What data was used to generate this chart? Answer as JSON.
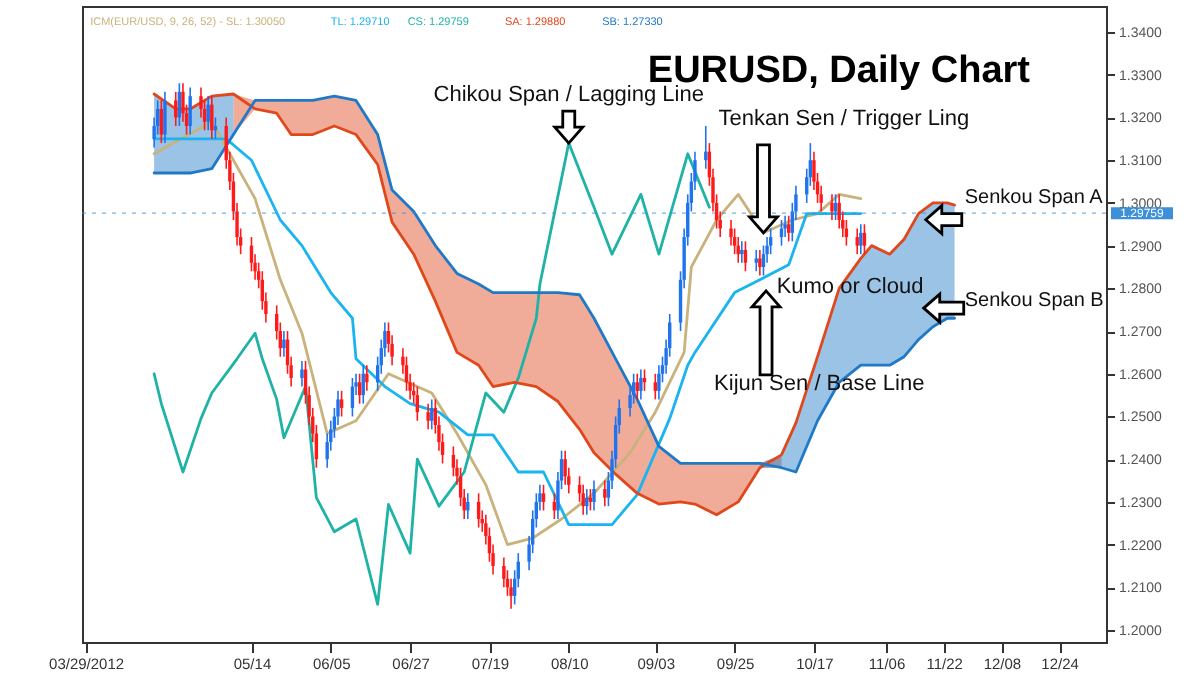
{
  "chart_data": {
    "type": "candlestick",
    "title": "EURUSD, Daily Chart",
    "annotations": [
      "ICM(EUR/USD, 9, 26, 52) - SL: 1.30050",
      "TL: 1.29710",
      "CS: 1.29759",
      "SA: 1.29880",
      "SB: 1.27330",
      {
        "text": "Chikou Span / Lagging Line",
        "x": "2012-08-10",
        "y": 1.314
      },
      "Tenkan Sen / Trigger Ling",
      "Kijun Sen / Base Line",
      "Senkou Span A",
      "Senkou Span B",
      "Kumo or Cloud"
    ],
    "xlim": [
      "2012-03-28",
      "2013-01-06"
    ],
    "xticks": [
      {
        "value": "2012-03-29",
        "label": "03/29/2012"
      },
      {
        "value": "2012-05-14",
        "label": "05/14"
      },
      {
        "value": "2012-06-05",
        "label": "06/05"
      },
      {
        "value": "2012-06-27",
        "label": "06/27"
      },
      {
        "value": "2012-07-19",
        "label": "07/19"
      },
      {
        "value": "2012-08-10",
        "label": "08/10"
      },
      {
        "value": "2012-09-03",
        "label": "09/03"
      },
      {
        "value": "2012-09-25",
        "label": "09/25"
      },
      {
        "value": "2012-10-17",
        "label": "10/17"
      },
      {
        "value": "2012-11-06",
        "label": "11/06"
      },
      {
        "value": "2012-11-22",
        "label": "11/22"
      },
      {
        "value": "2012-12-08",
        "label": "12/08"
      },
      {
        "value": "2012-12-24",
        "label": "12/24"
      }
    ],
    "ylim": [
      1.1972,
      1.3461
    ],
    "yticks": [
      {
        "value": 1.2,
        "label": "1.2000"
      },
      {
        "value": 1.21,
        "label": "1.2100"
      },
      {
        "value": 1.22,
        "label": "1.2200"
      },
      {
        "value": 1.23,
        "label": "1.2300"
      },
      {
        "value": 1.24,
        "label": "1.2400"
      },
      {
        "value": 1.25,
        "label": "1.2500"
      },
      {
        "value": 1.26,
        "label": "1.2600"
      },
      {
        "value": 1.27,
        "label": "1.2700"
      },
      {
        "value": 1.28,
        "label": "1.2800"
      },
      {
        "value": 1.29,
        "label": "1.2900"
      },
      {
        "value": 1.3,
        "label": "1.3000"
      },
      {
        "value": 1.31,
        "label": "1.3100"
      },
      {
        "value": 1.32,
        "label": "1.3200"
      },
      {
        "value": 1.33,
        "label": "1.3300"
      },
      {
        "value": 1.34,
        "label": "1.3400"
      }
    ],
    "ref_lines": [
      {
        "axis": "y",
        "value": 1.29759,
        "label": "1.29759",
        "color": "#3d8fd8"
      }
    ],
    "series": [
      {
        "type": "line",
        "color": "#c9b27c",
        "x": [
          "2012-04-17",
          "2012-05-03",
          "2012-05-15",
          "2012-05-22",
          "2012-05-28",
          "2012-06-04",
          "2012-06-12",
          "2012-06-21",
          "2012-07-03",
          "2012-07-10",
          "2012-07-18",
          "2012-07-24",
          "2012-07-31",
          "2012-08-08",
          "2012-08-17",
          "2012-08-27",
          "2012-09-03",
          "2012-09-11",
          "2012-09-13",
          "2012-09-20",
          "2012-09-26",
          "2012-10-03",
          "2012-10-11",
          "2012-10-18",
          "2012-10-24",
          "2012-10-30"
        ],
        "values": [
          1.3115,
          1.319,
          1.301,
          1.282,
          1.2695,
          1.246,
          1.249,
          1.26,
          1.2555,
          1.246,
          1.234,
          1.22,
          1.2215,
          1.226,
          1.232,
          1.2415,
          1.251,
          1.265,
          1.285,
          1.296,
          1.302,
          1.293,
          1.296,
          1.2975,
          1.302,
          1.301
        ]
      },
      {
        "type": "line",
        "color": "#1ab4f0",
        "x": [
          "2012-04-17",
          "2012-05-07",
          "2012-05-14",
          "2012-05-22",
          "2012-05-28",
          "2012-06-05",
          "2012-06-11",
          "2012-06-12",
          "2012-06-20",
          "2012-06-27",
          "2012-07-05",
          "2012-07-13",
          "2012-07-20",
          "2012-07-27",
          "2012-08-03",
          "2012-08-10",
          "2012-08-22",
          "2012-08-29",
          "2012-09-07",
          "2012-09-12",
          "2012-09-14",
          "2012-09-25",
          "2012-10-02",
          "2012-10-10",
          "2012-10-15",
          "2012-10-23",
          "2012-10-30"
        ],
        "values": [
          1.315,
          1.315,
          1.31,
          1.296,
          1.29,
          1.279,
          1.273,
          1.2635,
          1.257,
          1.253,
          1.251,
          1.2457,
          1.2457,
          1.237,
          1.237,
          1.2247,
          1.2247,
          1.2317,
          1.2495,
          1.262,
          1.265,
          1.279,
          1.282,
          1.2855,
          1.2975,
          1.2975,
          1.2975
        ]
      },
      {
        "type": "line",
        "color": "#1fb3a6",
        "x": [
          "2012-04-17",
          "2012-04-19",
          "2012-04-25",
          "2012-04-30",
          "2012-05-03",
          "2012-05-10",
          "2012-05-15",
          "2012-05-17",
          "2012-05-21",
          "2012-05-23",
          "2012-05-29",
          "2012-06-01",
          "2012-06-06",
          "2012-06-12",
          "2012-06-18",
          "2012-06-21",
          "2012-06-27",
          "2012-06-29",
          "2012-07-05",
          "2012-07-12",
          "2012-07-18",
          "2012-07-23",
          "2012-07-27",
          "2012-08-01",
          "2012-08-02",
          "2012-08-10",
          "2012-08-17",
          "2012-08-22",
          "2012-08-30",
          "2012-09-04",
          "2012-09-12",
          "2012-09-18"
        ],
        "values": [
          1.26,
          1.253,
          1.237,
          1.2495,
          1.2555,
          1.2635,
          1.2695,
          1.2635,
          1.254,
          1.245,
          1.257,
          1.231,
          1.223,
          1.226,
          1.206,
          1.2294,
          1.218,
          1.24,
          1.229,
          1.237,
          1.2555,
          1.251,
          1.259,
          1.273,
          1.281,
          1.314,
          1.299,
          1.288,
          1.302,
          1.288,
          1.3115,
          1.299
        ]
      },
      {
        "type": "line",
        "color": "#e0481c",
        "lower": [
          null,
          null,
          null,
          null,
          1.316,
          1.322,
          1.321,
          1.316,
          1.316,
          1.318,
          1.316,
          1.309,
          1.2955,
          1.288,
          1.277,
          1.265,
          1.262,
          1.257,
          1.258,
          1.257,
          1.2535,
          1.247,
          1.2415,
          1.2365,
          1.232,
          1.2295,
          1.23,
          1.2295,
          1.227,
          1.23,
          1.238,
          1.238,
          null,
          null,
          null,
          null,
          null,
          null,
          null,
          null,
          null,
          null,
          null
        ],
        "upper": [
          null,
          null,
          null,
          null,
          1.3255,
          1.324,
          1.324,
          1.324,
          1.324,
          1.325,
          1.324,
          1.316,
          1.303,
          1.298,
          1.29,
          1.2835,
          1.281,
          1.279,
          1.279,
          1.279,
          1.279,
          1.2785,
          1.273,
          1.2635,
          1.254,
          1.243,
          1.239,
          1.239,
          1.239,
          1.239,
          1.239,
          1.241,
          null,
          null,
          null,
          null,
          null,
          null,
          null,
          null,
          null,
          null,
          null
        ],
        "x": [
          "2012-04-17",
          "2012-04-23",
          "2012-04-27",
          "2012-05-03",
          "2012-05-09",
          "2012-05-15",
          "2012-05-21",
          "2012-05-25",
          "2012-05-31",
          "2012-06-06",
          "2012-06-12",
          "2012-06-18",
          "2012-06-22",
          "2012-06-28",
          "2012-07-04",
          "2012-07-10",
          "2012-07-16",
          "2012-07-20",
          "2012-07-26",
          "2012-08-01",
          "2012-08-07",
          "2012-08-13",
          "2012-08-17",
          "2012-08-23",
          "2012-08-29",
          "2012-09-04",
          "2012-09-10",
          "2012-09-14",
          "2012-09-20",
          "2012-09-26",
          "2012-10-02",
          "2012-10-08",
          "2012-10-12",
          "2012-10-18",
          "2012-10-24",
          "2012-10-30",
          "2012-11-02",
          "2012-11-07",
          "2012-11-11",
          "2012-11-15",
          "2012-11-19",
          "2012-11-23",
          "2012-11-25"
        ],
        "values": [
          1.3255,
          1.322,
          1.322,
          1.325,
          1.3255,
          1.322,
          1.321,
          1.316,
          1.316,
          1.318,
          1.316,
          1.309,
          1.2955,
          1.288,
          1.277,
          1.265,
          1.262,
          1.257,
          1.258,
          1.257,
          1.2535,
          1.247,
          1.2415,
          1.2365,
          1.232,
          1.2295,
          1.23,
          1.2295,
          1.227,
          1.23,
          1.238,
          1.241,
          1.2485,
          1.264,
          1.28,
          1.287,
          1.29,
          1.288,
          1.2915,
          1.2975,
          1.3,
          1.3,
          1.2995
        ]
      },
      {
        "type": "line",
        "color": "#2079c7",
        "lower": [
          1.307,
          1.307,
          1.307,
          1.308,
          1.316,
          null,
          null,
          null,
          null,
          null,
          null,
          null,
          null,
          null,
          null,
          null,
          null,
          null,
          null,
          null,
          null,
          null,
          null,
          null,
          null,
          null,
          null,
          null,
          null,
          null,
          1.238,
          1.238,
          1.237,
          1.249,
          1.258,
          1.262,
          1.262,
          1.262,
          1.264,
          1.268,
          1.271,
          1.273,
          1.273
        ],
        "upper": [
          1.3255,
          1.322,
          1.322,
          1.325,
          1.3255,
          null,
          null,
          null,
          null,
          null,
          null,
          null,
          null,
          null,
          null,
          null,
          null,
          null,
          null,
          null,
          null,
          null,
          null,
          null,
          null,
          null,
          null,
          null,
          null,
          null,
          1.239,
          1.241,
          1.2485,
          1.264,
          1.28,
          1.287,
          1.29,
          1.288,
          1.2915,
          1.2975,
          1.3,
          1.3,
          1.2995
        ],
        "x": [
          "2012-04-17",
          "2012-04-23",
          "2012-04-27",
          "2012-05-03",
          "2012-05-09",
          "2012-05-15",
          "2012-05-21",
          "2012-05-25",
          "2012-05-31",
          "2012-06-06",
          "2012-06-12",
          "2012-06-18",
          "2012-06-22",
          "2012-06-28",
          "2012-07-04",
          "2012-07-10",
          "2012-07-16",
          "2012-07-20",
          "2012-07-26",
          "2012-08-01",
          "2012-08-07",
          "2012-08-13",
          "2012-08-17",
          "2012-08-23",
          "2012-08-29",
          "2012-09-04",
          "2012-09-10",
          "2012-09-14",
          "2012-09-20",
          "2012-09-26",
          "2012-10-02",
          "2012-10-08",
          "2012-10-12",
          "2012-10-18",
          "2012-10-24",
          "2012-10-30",
          "2012-11-02",
          "2012-11-07",
          "2012-11-11",
          "2012-11-15",
          "2012-11-19",
          "2012-11-23",
          "2012-11-25"
        ],
        "values": [
          1.307,
          1.307,
          1.307,
          1.308,
          1.316,
          1.324,
          1.324,
          1.324,
          1.324,
          1.325,
          1.324,
          1.316,
          1.303,
          1.298,
          1.29,
          1.2835,
          1.281,
          1.279,
          1.279,
          1.279,
          1.279,
          1.2785,
          1.273,
          1.2635,
          1.254,
          1.243,
          1.239,
          1.239,
          1.239,
          1.239,
          1.239,
          1.238,
          1.237,
          1.249,
          1.258,
          1.262,
          1.262,
          1.262,
          1.264,
          1.268,
          1.271,
          1.273,
          1.273
        ]
      },
      {
        "color": "#1f74ee",
        "x": [
          "2012-04-17",
          "2012-04-18",
          "2012-04-20",
          "2012-04-24",
          "2012-04-27",
          "2012-05-02",
          "2012-05-04",
          "2012-05-23",
          "2012-05-28",
          "2012-06-04",
          "2012-06-05",
          "2012-06-06",
          "2012-06-07",
          "2012-06-11",
          "2012-06-12",
          "2012-06-14",
          "2012-06-18",
          "2012-06-19",
          "2012-06-20",
          "2012-07-03",
          "2012-07-13",
          "2012-07-26",
          "2012-07-27",
          "2012-07-30",
          "2012-07-31",
          "2012-08-01",
          "2012-08-02",
          "2012-08-07",
          "2012-08-08",
          "2012-08-15",
          "2012-08-17",
          "2012-08-21",
          "2012-08-22",
          "2012-08-23",
          "2012-08-24",
          "2012-08-27",
          "2012-08-28",
          "2012-08-30",
          "2012-09-04",
          "2012-09-05",
          "2012-09-06",
          "2012-09-07",
          "2012-09-10",
          "2012-09-11",
          "2012-09-12",
          "2012-09-13",
          "2012-09-14",
          "2012-09-17",
          "2012-09-27",
          "2012-10-01",
          "2012-10-03",
          "2012-10-04",
          "2012-10-05",
          "2012-10-08",
          "2012-10-09",
          "2012-10-11",
          "2012-10-12",
          "2012-10-15",
          "2012-10-16",
          "2012-10-23",
          "2012-10-30"
        ],
        "ohlc": [
          [
            1.315,
            1.32,
            1.313,
            1.318
          ],
          [
            1.318,
            1.324,
            1.316,
            1.322
          ],
          [
            1.316,
            1.326,
            1.314,
            1.324
          ],
          [
            1.32,
            1.328,
            1.318,
            1.326
          ],
          [
            1.318,
            1.327,
            1.316,
            1.325
          ],
          [
            1.319,
            1.325,
            1.317,
            1.323
          ],
          [
            1.317,
            1.32,
            1.315,
            1.318
          ],
          [
            1.266,
            1.27,
            1.264,
            1.268
          ],
          [
            1.259,
            1.263,
            1.257,
            1.261
          ],
          [
            1.24,
            1.246,
            1.238,
            1.244
          ],
          [
            1.244,
            1.249,
            1.242,
            1.247
          ],
          [
            1.247,
            1.252,
            1.245,
            1.25
          ],
          [
            1.25,
            1.256,
            1.248,
            1.254
          ],
          [
            1.252,
            1.259,
            1.25,
            1.257
          ],
          [
            1.257,
            1.26,
            1.255,
            1.258
          ],
          [
            1.255,
            1.262,
            1.253,
            1.26
          ],
          [
            1.258,
            1.264,
            1.256,
            1.262
          ],
          [
            1.262,
            1.268,
            1.26,
            1.266
          ],
          [
            1.266,
            1.272,
            1.264,
            1.27
          ],
          [
            1.249,
            1.254,
            1.247,
            1.252
          ],
          [
            1.228,
            1.232,
            1.226,
            1.23
          ],
          [
            1.208,
            1.214,
            1.206,
            1.212
          ],
          [
            1.212,
            1.218,
            1.21,
            1.216
          ],
          [
            1.216,
            1.222,
            1.214,
            1.22
          ],
          [
            1.22,
            1.228,
            1.218,
            1.226
          ],
          [
            1.226,
            1.232,
            1.224,
            1.23
          ],
          [
            1.23,
            1.234,
            1.228,
            1.232
          ],
          [
            1.228,
            1.237,
            1.226,
            1.235
          ],
          [
            1.235,
            1.242,
            1.233,
            1.24
          ],
          [
            1.229,
            1.233,
            1.227,
            1.231
          ],
          [
            1.23,
            1.235,
            1.228,
            1.233
          ],
          [
            1.231,
            1.237,
            1.229,
            1.235
          ],
          [
            1.235,
            1.242,
            1.233,
            1.24
          ],
          [
            1.24,
            1.25,
            1.238,
            1.248
          ],
          [
            1.248,
            1.254,
            1.246,
            1.252
          ],
          [
            1.252,
            1.257,
            1.25,
            1.255
          ],
          [
            1.255,
            1.26,
            1.253,
            1.258
          ],
          [
            1.256,
            1.261,
            1.254,
            1.259
          ],
          [
            1.256,
            1.262,
            1.254,
            1.26
          ],
          [
            1.26,
            1.264,
            1.258,
            1.262
          ],
          [
            1.262,
            1.268,
            1.26,
            1.266
          ],
          [
            1.266,
            1.274,
            1.264,
            1.272
          ],
          [
            1.272,
            1.284,
            1.27,
            1.282
          ],
          [
            1.282,
            1.294,
            1.28,
            1.292
          ],
          [
            1.292,
            1.302,
            1.29,
            1.3
          ],
          [
            1.3,
            1.307,
            1.298,
            1.305
          ],
          [
            1.305,
            1.312,
            1.303,
            1.31
          ],
          [
            1.31,
            1.318,
            1.308,
            1.312
          ],
          [
            1.288,
            1.291,
            1.286,
            1.289
          ],
          [
            1.286,
            1.289,
            1.284,
            1.287
          ],
          [
            1.285,
            1.29,
            1.283,
            1.288
          ],
          [
            1.288,
            1.292,
            1.286,
            1.29
          ],
          [
            1.29,
            1.294,
            1.288,
            1.292
          ],
          [
            1.292,
            1.296,
            1.29,
            1.294
          ],
          [
            1.294,
            1.297,
            1.292,
            1.295
          ],
          [
            1.293,
            1.3,
            1.291,
            1.298
          ],
          [
            1.298,
            1.304,
            1.296,
            1.302
          ],
          [
            1.302,
            1.308,
            1.3,
            1.306
          ],
          [
            1.306,
            1.314,
            1.304,
            1.31
          ],
          [
            1.298,
            1.302,
            1.296,
            1.3
          ],
          [
            1.29,
            1.295,
            1.288,
            1.293
          ]
        ]
      },
      {
        "color": "#ff1a1a",
        "x": [
          "2012-04-19",
          "2012-04-23",
          "2012-04-25",
          "2012-04-26",
          "2012-04-30",
          "2012-05-01",
          "2012-05-03",
          "2012-05-07",
          "2012-05-08",
          "2012-05-09",
          "2012-05-10",
          "2012-05-11",
          "2012-05-14",
          "2012-05-15",
          "2012-05-16",
          "2012-05-17",
          "2012-05-18",
          "2012-05-21",
          "2012-05-22",
          "2012-05-24",
          "2012-05-25",
          "2012-05-29",
          "2012-05-30",
          "2012-05-31",
          "2012-06-01",
          "2012-06-08",
          "2012-06-13",
          "2012-06-15",
          "2012-06-21",
          "2012-06-22",
          "2012-06-25",
          "2012-06-26",
          "2012-06-27",
          "2012-06-28",
          "2012-06-29",
          "2012-07-02",
          "2012-07-04",
          "2012-07-05",
          "2012-07-06",
          "2012-07-09",
          "2012-07-10",
          "2012-07-11",
          "2012-07-12",
          "2012-07-16",
          "2012-07-17",
          "2012-07-18",
          "2012-07-19",
          "2012-07-20",
          "2012-07-23",
          "2012-07-24",
          "2012-07-25",
          "2012-08-03",
          "2012-08-06",
          "2012-08-09",
          "2012-08-10",
          "2012-08-13",
          "2012-08-14",
          "2012-08-16",
          "2012-08-20",
          "2012-08-29",
          "2012-08-31",
          "2012-09-03",
          "2012-09-18",
          "2012-09-19",
          "2012-09-20",
          "2012-09-21",
          "2012-09-24",
          "2012-09-25",
          "2012-09-26",
          "2012-09-28",
          "2012-10-02",
          "2012-10-10",
          "2012-10-17",
          "2012-10-18",
          "2012-10-19",
          "2012-10-22",
          "2012-10-24",
          "2012-10-25",
          "2012-10-26",
          "2012-10-29",
          "2012-10-31"
        ],
        "ohlc": [
          [
            1.322,
            1.324,
            1.314,
            1.316
          ],
          [
            1.324,
            1.326,
            1.318,
            1.32
          ],
          [
            1.326,
            1.328,
            1.319,
            1.321
          ],
          [
            1.321,
            1.323,
            1.316,
            1.318
          ],
          [
            1.325,
            1.327,
            1.32,
            1.322
          ],
          [
            1.322,
            1.324,
            1.317,
            1.319
          ],
          [
            1.323,
            1.325,
            1.315,
            1.317
          ],
          [
            1.318,
            1.32,
            1.308,
            1.31
          ],
          [
            1.31,
            1.312,
            1.303,
            1.305
          ],
          [
            1.305,
            1.307,
            1.296,
            1.298
          ],
          [
            1.298,
            1.3,
            1.29,
            1.292
          ],
          [
            1.292,
            1.294,
            1.288,
            1.29
          ],
          [
            1.29,
            1.292,
            1.284,
            1.286
          ],
          [
            1.286,
            1.288,
            1.282,
            1.284
          ],
          [
            1.284,
            1.286,
            1.28,
            1.282
          ],
          [
            1.282,
            1.284,
            1.275,
            1.277
          ],
          [
            1.277,
            1.279,
            1.272,
            1.274
          ],
          [
            1.274,
            1.276,
            1.268,
            1.27
          ],
          [
            1.27,
            1.272,
            1.264,
            1.266
          ],
          [
            1.268,
            1.27,
            1.26,
            1.262
          ],
          [
            1.262,
            1.264,
            1.257,
            1.259
          ],
          [
            1.261,
            1.263,
            1.253,
            1.255
          ],
          [
            1.255,
            1.257,
            1.248,
            1.25
          ],
          [
            1.25,
            1.252,
            1.244,
            1.246
          ],
          [
            1.246,
            1.248,
            1.238,
            1.24
          ],
          [
            1.254,
            1.256,
            1.25,
            1.252
          ],
          [
            1.258,
            1.26,
            1.253,
            1.255
          ],
          [
            1.26,
            1.262,
            1.256,
            1.258
          ],
          [
            1.27,
            1.272,
            1.265,
            1.267
          ],
          [
            1.267,
            1.269,
            1.262,
            1.264
          ],
          [
            1.264,
            1.266,
            1.26,
            1.262
          ],
          [
            1.262,
            1.264,
            1.256,
            1.258
          ],
          [
            1.258,
            1.26,
            1.254,
            1.256
          ],
          [
            1.256,
            1.258,
            1.253,
            1.255
          ],
          [
            1.255,
            1.257,
            1.249,
            1.251
          ],
          [
            1.251,
            1.253,
            1.247,
            1.249
          ],
          [
            1.252,
            1.254,
            1.246,
            1.248
          ],
          [
            1.248,
            1.25,
            1.242,
            1.244
          ],
          [
            1.244,
            1.246,
            1.239,
            1.241
          ],
          [
            1.241,
            1.243,
            1.236,
            1.238
          ],
          [
            1.238,
            1.24,
            1.234,
            1.236
          ],
          [
            1.236,
            1.238,
            1.229,
            1.231
          ],
          [
            1.231,
            1.233,
            1.226,
            1.228
          ],
          [
            1.23,
            1.232,
            1.224,
            1.226
          ],
          [
            1.226,
            1.228,
            1.223,
            1.225
          ],
          [
            1.225,
            1.227,
            1.22,
            1.222
          ],
          [
            1.222,
            1.224,
            1.216,
            1.218
          ],
          [
            1.218,
            1.22,
            1.213,
            1.215
          ],
          [
            1.215,
            1.217,
            1.21,
            1.212
          ],
          [
            1.212,
            1.214,
            1.208,
            1.21
          ],
          [
            1.21,
            1.212,
            1.205,
            1.208
          ],
          [
            1.232,
            1.234,
            1.228,
            1.23
          ],
          [
            1.23,
            1.232,
            1.226,
            1.228
          ],
          [
            1.24,
            1.242,
            1.234,
            1.236
          ],
          [
            1.236,
            1.238,
            1.232,
            1.234
          ],
          [
            1.234,
            1.236,
            1.23,
            1.232
          ],
          [
            1.232,
            1.234,
            1.227,
            1.229
          ],
          [
            1.231,
            1.233,
            1.228,
            1.23
          ],
          [
            1.233,
            1.235,
            1.229,
            1.231
          ],
          [
            1.258,
            1.26,
            1.254,
            1.256
          ],
          [
            1.259,
            1.261,
            1.256,
            1.258
          ],
          [
            1.258,
            1.26,
            1.254,
            1.256
          ],
          [
            1.312,
            1.314,
            1.304,
            1.306
          ],
          [
            1.306,
            1.308,
            1.298,
            1.3
          ],
          [
            1.3,
            1.302,
            1.294,
            1.296
          ],
          [
            1.296,
            1.298,
            1.292,
            1.294
          ],
          [
            1.294,
            1.296,
            1.29,
            1.292
          ],
          [
            1.292,
            1.294,
            1.288,
            1.29
          ],
          [
            1.29,
            1.292,
            1.286,
            1.288
          ],
          [
            1.289,
            1.291,
            1.284,
            1.286
          ],
          [
            1.287,
            1.289,
            1.283,
            1.285
          ],
          [
            1.295,
            1.297,
            1.291,
            1.293
          ],
          [
            1.31,
            1.312,
            1.303,
            1.305
          ],
          [
            1.305,
            1.307,
            1.3,
            1.302
          ],
          [
            1.302,
            1.304,
            1.298,
            1.3
          ],
          [
            1.3,
            1.302,
            1.296,
            1.298
          ],
          [
            1.3,
            1.302,
            1.294,
            1.296
          ],
          [
            1.296,
            1.298,
            1.292,
            1.294
          ],
          [
            1.294,
            1.296,
            1.29,
            1.292
          ],
          [
            1.292,
            1.294,
            1.288,
            1.29
          ],
          [
            1.293,
            1.295,
            1.288,
            1.29
          ]
        ]
      }
    ]
  }
}
